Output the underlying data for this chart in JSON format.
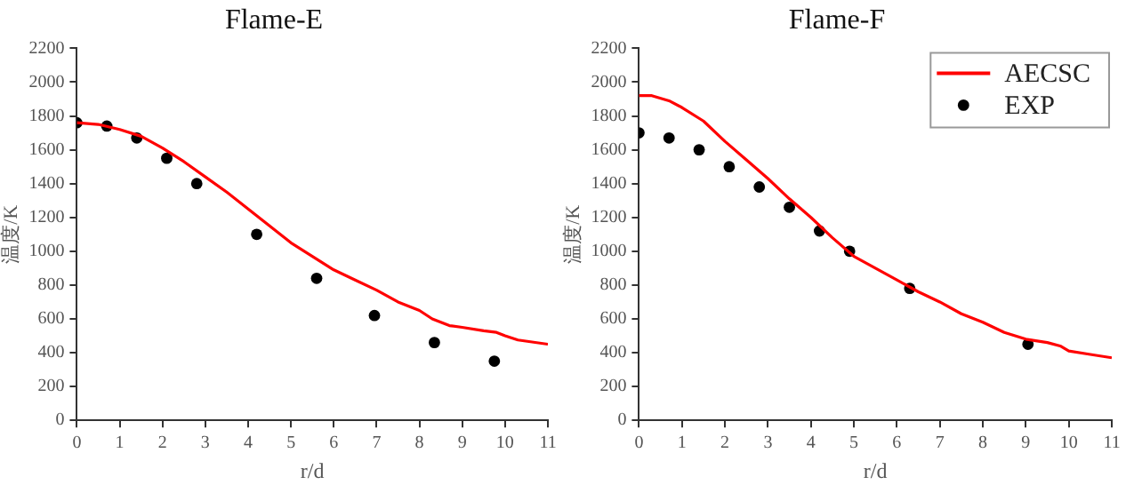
{
  "chart_data": [
    {
      "type": "line",
      "title": "Flame-E",
      "xlabel": "r/d",
      "ylabel": "温度/K",
      "xlim": [
        0,
        11
      ],
      "xticks": [
        0,
        1,
        2,
        3,
        4,
        5,
        6,
        7,
        8,
        9,
        10,
        11
      ],
      "ylim": [
        0,
        2200
      ],
      "yticks": [
        0,
        200,
        400,
        600,
        800,
        1000,
        1200,
        1400,
        1600,
        1800,
        2000,
        2200
      ],
      "grid": false,
      "legend": false,
      "series": [
        {
          "type": "line",
          "color": "#ff0000",
          "line_style": "solid",
          "marker": "none",
          "x": [
            0,
            0.5,
            1,
            1.5,
            2,
            2.5,
            3,
            3.5,
            4,
            4.5,
            5,
            5.5,
            6,
            6.5,
            7,
            7.5,
            8,
            8.3,
            8.7,
            9,
            9.5,
            9.8,
            10,
            10.3,
            11
          ],
          "values": [
            1760,
            1750,
            1720,
            1680,
            1610,
            1530,
            1440,
            1350,
            1250,
            1150,
            1050,
            970,
            890,
            830,
            770,
            700,
            650,
            600,
            560,
            550,
            530,
            520,
            500,
            475,
            450
          ]
        },
        {
          "type": "scatter",
          "color": "#000000",
          "marker": "circle",
          "x": [
            0,
            0.7,
            1.4,
            2.1,
            2.8,
            4.2,
            5.6,
            6.95,
            8.35,
            9.75
          ],
          "values": [
            1760,
            1740,
            1670,
            1550,
            1400,
            1100,
            840,
            620,
            460,
            350
          ]
        }
      ]
    },
    {
      "type": "line",
      "title": "Flame-F",
      "xlabel": "r/d",
      "ylabel": "温度/K",
      "xlim": [
        0,
        11
      ],
      "xticks": [
        0,
        1,
        2,
        3,
        4,
        5,
        6,
        7,
        8,
        9,
        10,
        11
      ],
      "ylim": [
        0,
        2200
      ],
      "yticks": [
        0,
        200,
        400,
        600,
        800,
        1000,
        1200,
        1400,
        1600,
        1800,
        2000,
        2200
      ],
      "grid": false,
      "legend": "top right",
      "series": [
        {
          "type": "line",
          "name": "AECSC",
          "color": "#ff0000",
          "line_style": "solid",
          "marker": "none",
          "x": [
            0,
            0.3,
            0.7,
            1,
            1.5,
            2,
            2.5,
            3,
            3.5,
            4,
            4.5,
            5,
            5.5,
            6,
            6.5,
            7,
            7.5,
            8,
            8.5,
            9,
            9.5,
            9.8,
            10,
            10.5,
            11
          ],
          "values": [
            1920,
            1920,
            1890,
            1850,
            1770,
            1650,
            1540,
            1430,
            1310,
            1200,
            1080,
            970,
            900,
            830,
            760,
            700,
            630,
            580,
            520,
            480,
            460,
            440,
            410,
            390,
            370
          ]
        },
        {
          "type": "scatter",
          "name": "EXP",
          "color": "#000000",
          "marker": "circle",
          "x": [
            0,
            0.7,
            1.4,
            2.1,
            2.8,
            3.5,
            4.2,
            4.9,
            6.3,
            9.05
          ],
          "values": [
            1700,
            1670,
            1600,
            1500,
            1380,
            1260,
            1120,
            1000,
            780,
            450
          ]
        }
      ]
    }
  ]
}
